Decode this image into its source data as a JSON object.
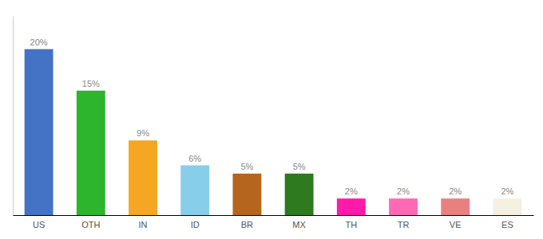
{
  "chart_data": {
    "type": "bar",
    "categories": [
      "US",
      "OTH",
      "IN",
      "ID",
      "BR",
      "MX",
      "TH",
      "TR",
      "VE",
      "ES"
    ],
    "values": [
      20,
      15,
      9,
      6,
      5,
      5,
      2,
      2,
      2,
      2
    ],
    "value_labels": [
      "20%",
      "15%",
      "9%",
      "6%",
      "5%",
      "5%",
      "2%",
      "2%",
      "2%",
      "2%"
    ],
    "colors": [
      "#4472c4",
      "#2db52d",
      "#f5a623",
      "#87ceeb",
      "#b5651d",
      "#2d7a1f",
      "#ff1aaa",
      "#ff69b4",
      "#e88080",
      "#f5f0e0"
    ],
    "ylim": [
      0,
      24
    ],
    "grid": false,
    "data_labels": true,
    "tick_labels": "x"
  }
}
